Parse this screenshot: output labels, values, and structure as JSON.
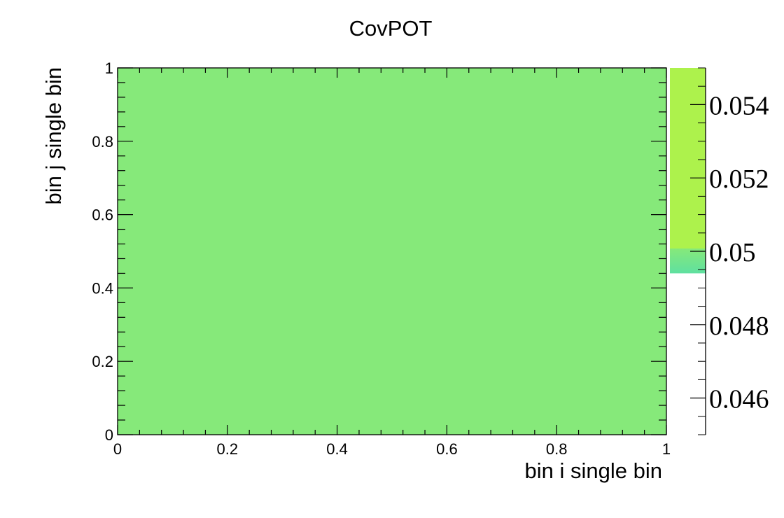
{
  "chart_data": {
    "type": "heatmap",
    "title": "CovPOT",
    "xlabel": "bin i single bin",
    "ylabel": "bin j single bin",
    "xlim": [
      0,
      1
    ],
    "ylim": [
      0,
      1
    ],
    "x_ticks": [
      "0",
      "0.2",
      "0.4",
      "0.6",
      "0.8",
      "1"
    ],
    "y_ticks": [
      "0",
      "0.2",
      "0.4",
      "0.6",
      "0.8",
      "1"
    ],
    "cells": [
      {
        "x": [
          0,
          1
        ],
        "y": [
          0,
          1
        ],
        "value": 0.0498,
        "color": "#86e97a"
      }
    ],
    "colorbar": {
      "range": [
        0.045,
        0.055
      ],
      "ticks": [
        "0.046",
        "0.048",
        "0.05",
        "0.052",
        "0.054"
      ],
      "filled_from": 0.0494,
      "colors": [
        "#5fe0a0",
        "#86e97a",
        "#adf24c"
      ]
    },
    "grid": false,
    "legend": "none"
  }
}
